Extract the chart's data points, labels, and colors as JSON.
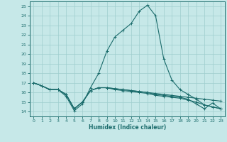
{
  "bg_color": "#c6e8e8",
  "grid_color": "#9ecece",
  "line_color": "#1a6b6b",
  "marker_color": "#1a6b6b",
  "xlabel": "Humidex (Indice chaleur)",
  "xlim": [
    -0.5,
    23.5
  ],
  "ylim": [
    13.5,
    25.5
  ],
  "yticks": [
    14,
    15,
    16,
    17,
    18,
    19,
    20,
    21,
    22,
    23,
    24,
    25
  ],
  "xticks": [
    0,
    1,
    2,
    3,
    4,
    5,
    6,
    7,
    8,
    9,
    10,
    11,
    12,
    13,
    14,
    15,
    16,
    17,
    18,
    19,
    20,
    21,
    22,
    23
  ],
  "series": [
    [
      17.0,
      16.7,
      16.3,
      16.3,
      15.6,
      14.1,
      14.8,
      16.5,
      18.0,
      20.3,
      21.8,
      22.5,
      23.2,
      24.5,
      25.1,
      24.0,
      19.5,
      17.3,
      16.3,
      15.8,
      15.3,
      14.7,
      14.5,
      14.3
    ],
    [
      17.0,
      16.7,
      16.3,
      16.3,
      15.8,
      14.3,
      15.0,
      16.2,
      16.5,
      16.5,
      16.4,
      16.3,
      16.2,
      16.1,
      16.0,
      15.9,
      15.8,
      15.7,
      15.6,
      15.5,
      15.4,
      15.3,
      15.2,
      15.1
    ],
    [
      17.0,
      16.7,
      16.3,
      16.3,
      15.8,
      14.3,
      15.0,
      16.2,
      16.5,
      16.5,
      16.3,
      16.2,
      16.1,
      16.0,
      15.9,
      15.7,
      15.6,
      15.5,
      15.4,
      15.2,
      15.0,
      14.7,
      14.5,
      14.3
    ],
    [
      17.0,
      16.7,
      16.3,
      16.3,
      15.8,
      14.3,
      15.0,
      16.2,
      16.5,
      16.5,
      16.4,
      16.3,
      16.2,
      16.1,
      16.0,
      15.8,
      15.7,
      15.6,
      15.5,
      15.3,
      14.8,
      14.3,
      14.9,
      14.3
    ]
  ]
}
